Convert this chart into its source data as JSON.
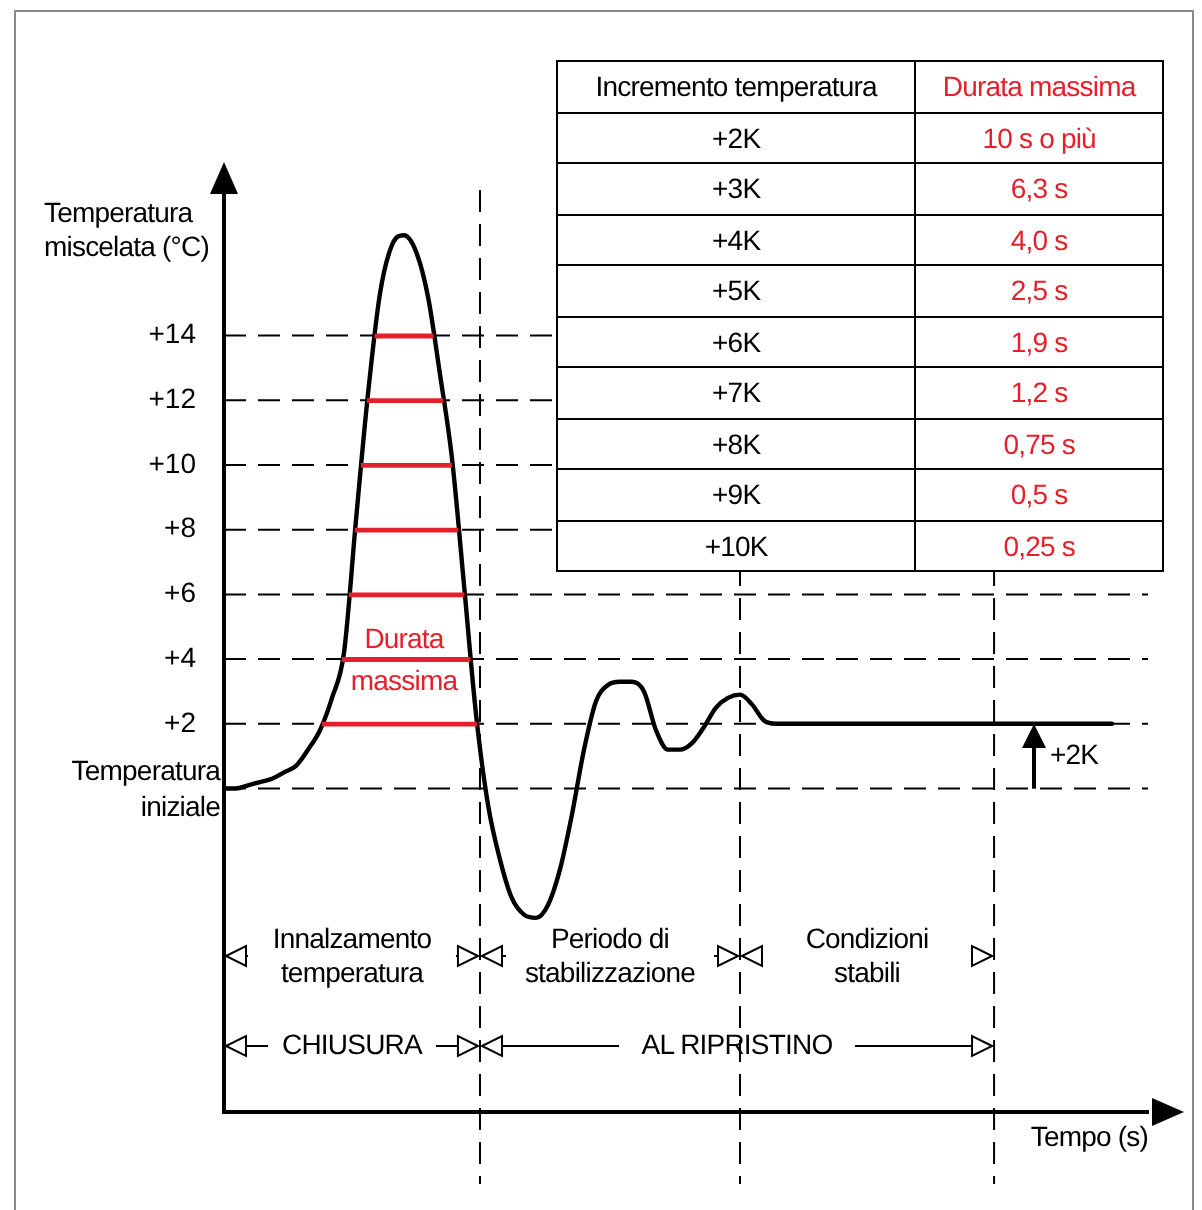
{
  "chart_data": {
    "type": "line",
    "ylabel": "Temperatura miscelata (°C)",
    "xlabel": "Tempo (s)",
    "categories": [
      null,
      null,
      null,
      null,
      null,
      null,
      null,
      null,
      null,
      null,
      null,
      null,
      null,
      null,
      null,
      null,
      null,
      null,
      null,
      null,
      null,
      null,
      null,
      null,
      null,
      null,
      null,
      null,
      null,
      null,
      null,
      null,
      null,
      null,
      null,
      null,
      null,
      null,
      null,
      null,
      null,
      null,
      null,
      null,
      null,
      null,
      null,
      null,
      null,
      null,
      null,
      null,
      null,
      null,
      null,
      null,
      null,
      null,
      null,
      null,
      null,
      null,
      null,
      null,
      null,
      null,
      null,
      null,
      null,
      null,
      null,
      null,
      null,
      null,
      null,
      null,
      null,
      null
    ],
    "series": [
      {
        "color": "#000000",
        "values": [
          0,
          0,
          0.1,
          0.2,
          0.3,
          0.5,
          0.7,
          1.2,
          1.8,
          2.8,
          4.2,
          8.3,
          12.2,
          15.3,
          16.8,
          17.1,
          16.6,
          15.2,
          12.8,
          10.2,
          6.3,
          2.3,
          -0.5,
          -2.2,
          -3.4,
          -3.9,
          -4.0,
          -3.6,
          -2.5,
          -0.8,
          1.2,
          2.7,
          3.2,
          3.3,
          3.3,
          3.0,
          1.8,
          1.2,
          1.2,
          1.4,
          1.9,
          2.5,
          2.8,
          2.9,
          2.6,
          2.1,
          2,
          2,
          2,
          2,
          2,
          2,
          2,
          2,
          2,
          2,
          2,
          2,
          2,
          2,
          2,
          2,
          2,
          2,
          2,
          2,
          2,
          2,
          2,
          2,
          2,
          2,
          2,
          2,
          2,
          null,
          null,
          null
        ]
      }
    ],
    "ylim": [
      -10,
      18.5
    ],
    "yticks": [
      {
        "value": 0,
        "label": null
      },
      {
        "value": 2,
        "label": "+2"
      },
      {
        "value": 4,
        "label": "+4"
      },
      {
        "value": 6,
        "label": "+6"
      },
      {
        "value": 8,
        "label": "+8"
      },
      {
        "value": 10,
        "label": "+10"
      },
      {
        "value": 12,
        "label": "+12"
      },
      {
        "value": 14,
        "label": "+14"
      }
    ],
    "grid": "y",
    "tick_labels": "y",
    "marker": "none",
    "annotations": [
      "Temperatura iniziale",
      "Durata massima",
      "Innalzamento temperatura",
      "Periodo di stabilizzazione",
      "Condizioni stabili",
      "CHIUSURA",
      "AL RIPRISTINO",
      "+2K",
      "Incremento temperatura",
      "Durata massima",
      "+2K",
      "10 s o più",
      "+3K",
      "6,3 s",
      "+4K",
      "4,0 s",
      "+5K",
      "2,5 s",
      "+6K",
      "1,9 s",
      "+7K",
      "1,2 s",
      "+8K",
      "0,75 s",
      "+9K",
      "0,5 s",
      "+10K",
      "0,25 s"
    ]
  }
}
